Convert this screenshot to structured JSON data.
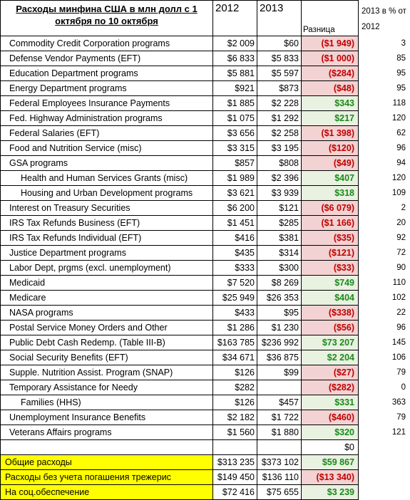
{
  "header": {
    "title": "Расходы минфина США в млн долл с 1 октября по 10 октября",
    "year1": "2012",
    "year2": "2013",
    "diff": "Разница",
    "pct": "2013 в % от 2012"
  },
  "rows": [
    {
      "name": "Commodity Credit Corporation programs",
      "v2012": "$2 009",
      "v2013": "$60",
      "diff": "($1 949)",
      "sign": "neg",
      "pct": "3"
    },
    {
      "name": "Defense Vendor Payments (EFT)",
      "v2012": "$6 833",
      "v2013": "$5 833",
      "diff": "($1 000)",
      "sign": "neg",
      "pct": "85"
    },
    {
      "name": "Education Department programs",
      "v2012": "$5 881",
      "v2013": "$5 597",
      "diff": "($284)",
      "sign": "neg",
      "pct": "95"
    },
    {
      "name": "Energy Department programs",
      "v2012": "$921",
      "v2013": "$873",
      "diff": "($48)",
      "sign": "neg",
      "pct": "95"
    },
    {
      "name": "Federal Employees Insurance Payments",
      "v2012": "$1 885",
      "v2013": "$2 228",
      "diff": "$343",
      "sign": "pos",
      "pct": "118"
    },
    {
      "name": "Fed. Highway Administration programs",
      "v2012": "$1 075",
      "v2013": "$1 292",
      "diff": "$217",
      "sign": "pos",
      "pct": "120"
    },
    {
      "name": "Federal Salaries (EFT)",
      "v2012": "$3 656",
      "v2013": "$2 258",
      "diff": "($1 398)",
      "sign": "neg",
      "pct": "62"
    },
    {
      "name": "Food and Nutrition Service (misc)",
      "v2012": "$3 315",
      "v2013": "$3 195",
      "diff": "($120)",
      "sign": "neg",
      "pct": "96"
    },
    {
      "name": "GSA programs",
      "v2012": "$857",
      "v2013": "$808",
      "diff": "($49)",
      "sign": "neg",
      "pct": "94"
    },
    {
      "name": "Health and Human Services Grants (misc)",
      "v2012": "$1 989",
      "v2013": "$2 396",
      "diff": "$407",
      "sign": "pos",
      "pct": "120",
      "indent": true
    },
    {
      "name": "Housing and Urban Development programs",
      "v2012": "$3 621",
      "v2013": "$3 939",
      "diff": "$318",
      "sign": "pos",
      "pct": "109",
      "indent": true
    },
    {
      "name": "Interest on Treasury Securities",
      "v2012": "$6 200",
      "v2013": "$121",
      "diff": "($6 079)",
      "sign": "neg",
      "pct": "2"
    },
    {
      "name": "IRS Tax Refunds Business (EFT)",
      "v2012": "$1 451",
      "v2013": "$285",
      "diff": "($1 166)",
      "sign": "neg",
      "pct": "20"
    },
    {
      "name": "IRS Tax Refunds Individual (EFT)",
      "v2012": "$416",
      "v2013": "$381",
      "diff": "($35)",
      "sign": "neg",
      "pct": "92"
    },
    {
      "name": "Justice Department programs",
      "v2012": "$435",
      "v2013": "$314",
      "diff": "($121)",
      "sign": "neg",
      "pct": "72"
    },
    {
      "name": "Labor Dept, prgms (excl. unemployment)",
      "v2012": "$333",
      "v2013": "$300",
      "diff": "($33)",
      "sign": "neg",
      "pct": "90"
    },
    {
      "name": "Medicaid",
      "v2012": "$7 520",
      "v2013": "$8 269",
      "diff": "$749",
      "sign": "pos",
      "pct": "110"
    },
    {
      "name": "Medicare",
      "v2012": "$25 949",
      "v2013": "$26 353",
      "diff": "$404",
      "sign": "pos",
      "pct": "102"
    },
    {
      "name": "NASA programs",
      "v2012": "$433",
      "v2013": "$95",
      "diff": "($338)",
      "sign": "neg",
      "pct": "22"
    },
    {
      "name": "Postal Service Money Orders and Other",
      "v2012": "$1 286",
      "v2013": "$1 230",
      "diff": "($56)",
      "sign": "neg",
      "pct": "96"
    },
    {
      "name": "Public Debt Cash Redemp. (Table III-B)",
      "v2012": "$163 785",
      "v2013": "$236 992",
      "diff": "$73 207",
      "sign": "pos",
      "pct": "145"
    },
    {
      "name": "Social Security Benefits (EFT)",
      "v2012": "$34 671",
      "v2013": "$36 875",
      "diff": "$2 204",
      "sign": "pos",
      "pct": "106"
    },
    {
      "name": "Supple. Nutrition Assist. Program (SNAP)",
      "v2012": "$126",
      "v2013": "$99",
      "diff": "($27)",
      "sign": "neg",
      "pct": "79"
    },
    {
      "name": "Temporary Assistance for Needy",
      "v2012": "$282",
      "v2013": "",
      "diff": "($282)",
      "sign": "neg",
      "pct": "0"
    },
    {
      "name": "Families (HHS)",
      "v2012": "$126",
      "v2013": "$457",
      "diff": "$331",
      "sign": "pos",
      "pct": "363",
      "indent": true
    },
    {
      "name": "Unemployment Insurance Benefits",
      "v2012": "$2 182",
      "v2013": "$1 722",
      "diff": "($460)",
      "sign": "neg",
      "pct": "79"
    },
    {
      "name": "Veterans Affairs programs",
      "v2012": "$1 560",
      "v2013": "$1 880",
      "diff": "$320",
      "sign": "pos",
      "pct": "121"
    },
    {
      "name": "",
      "v2012": "",
      "v2013": "",
      "diff": "$0",
      "sign": "zero",
      "pct": ""
    }
  ],
  "totals": [
    {
      "name": "Общие расходы",
      "v2012": "$313 235",
      "v2013": "$373 102",
      "diff": "$59 867",
      "sign": "pos",
      "pct": ""
    },
    {
      "name": "Расходы без учета погашения трежерис",
      "v2012": "$149 450",
      "v2013": "$136 110",
      "diff": "($13 340)",
      "sign": "neg",
      "pct": ""
    },
    {
      "name": "На соц.обеспечение",
      "v2012": "$72 416",
      "v2013": "$75 655",
      "diff": "$3 239",
      "sign": "pos",
      "pct": ""
    }
  ],
  "colors": {
    "negative_text": "#c00000",
    "negative_fill": "#f2d2d2",
    "positive_text": "#1a8a1a",
    "positive_fill": "#e9f1e1",
    "highlight": "#ffff00"
  }
}
